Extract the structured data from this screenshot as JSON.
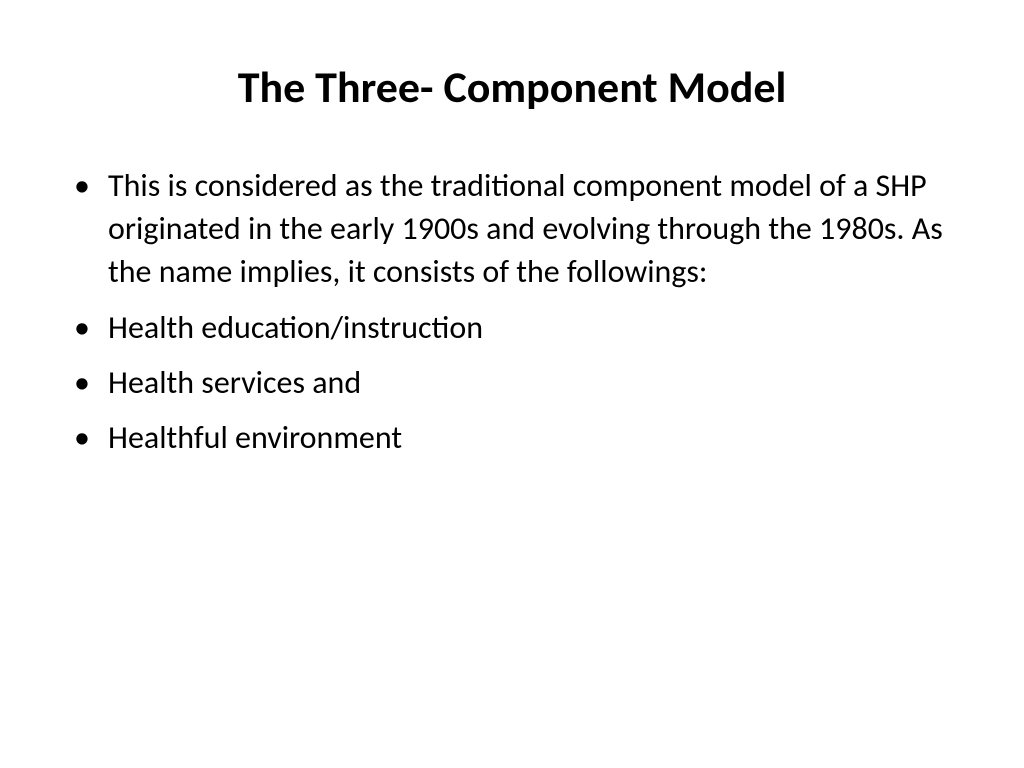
{
  "slide": {
    "title": "The Three- Component Model",
    "bullets": [
      "This is considered as the traditional component model of a SHP originated in the early 1900s and evolving through the 1980s. As the name implies, it consists of the followings:",
      "Health education/instruction",
      " Health services and",
      " Healthful environment"
    ],
    "title_fontsize": 44,
    "body_fontsize": 32,
    "background_color": "#ffffff",
    "text_color": "#000000",
    "font_family": "Calibri"
  }
}
